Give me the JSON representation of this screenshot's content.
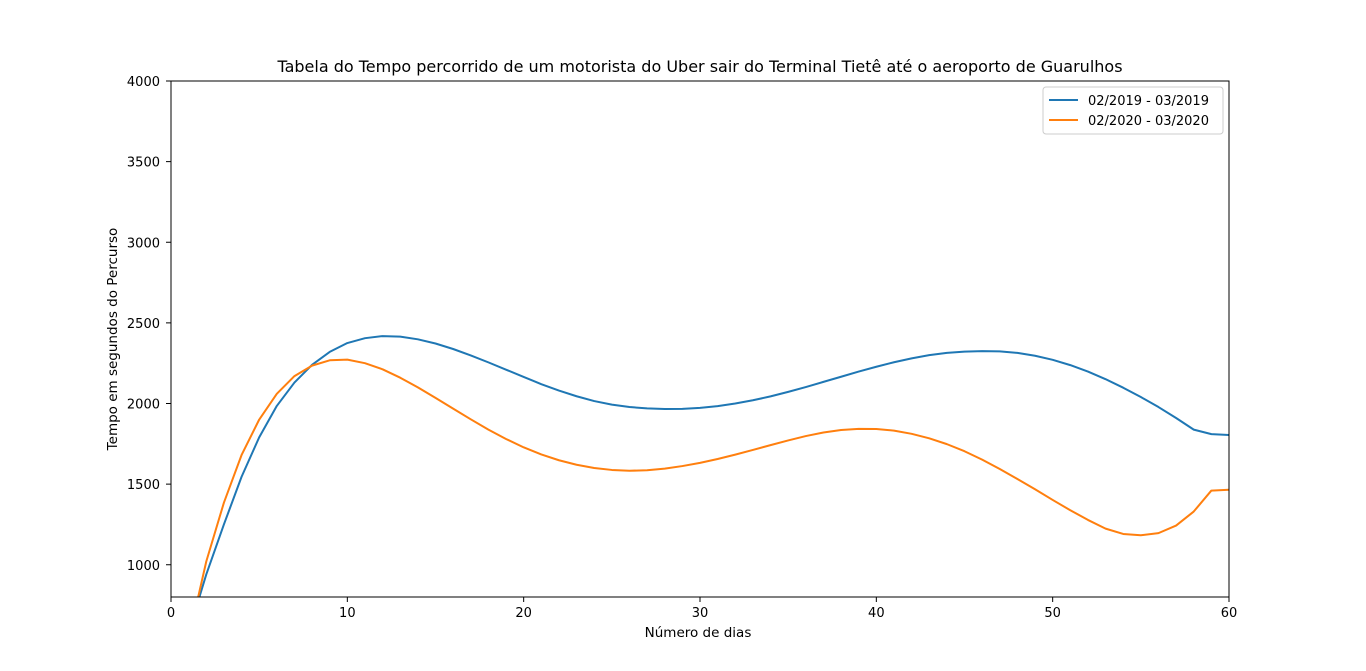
{
  "chart_data": {
    "type": "line",
    "title": "Tabela do Tempo percorrido de um motorista do Uber sair do Terminal Tietê até o aeroporto de Guarulhos",
    "xlabel": "Número de dias",
    "ylabel": "Tempo em segundos do Percurso",
    "xlim": [
      0,
      60
    ],
    "ylim": [
      800,
      4000
    ],
    "xticks": [
      0,
      10,
      20,
      30,
      40,
      50,
      60
    ],
    "xtick_labels": [
      "0",
      "10",
      "20",
      "30",
      "40",
      "50",
      "60"
    ],
    "yticks": [
      1000,
      1500,
      2000,
      2500,
      3000,
      3500,
      4000
    ],
    "ytick_labels": [
      "1000",
      "1500",
      "2000",
      "2500",
      "3000",
      "3500",
      "4000"
    ],
    "grid": false,
    "legend_position": "top-right",
    "x": [
      1,
      1.5,
      2,
      3,
      4,
      5,
      6,
      7,
      8,
      9,
      10,
      11,
      12,
      13,
      14,
      15,
      16,
      17,
      18,
      19,
      20,
      21,
      22,
      23,
      24,
      25,
      26,
      27,
      28,
      29,
      30,
      31,
      32,
      33,
      34,
      35,
      36,
      37,
      38,
      39,
      40,
      41,
      42,
      43,
      44,
      45,
      46,
      47,
      48,
      49,
      50,
      51,
      52,
      53,
      54,
      55,
      56,
      57,
      58,
      59,
      60
    ],
    "series": [
      {
        "name": "02/2019 - 03/2019",
        "color": "#1f77b4",
        "values": [
          550,
          760,
          940,
          1250,
          1545,
          1790,
          1985,
          2130,
          2240,
          2320,
          2375,
          2405,
          2418,
          2415,
          2398,
          2372,
          2338,
          2298,
          2255,
          2210,
          2165,
          2120,
          2080,
          2045,
          2015,
          1993,
          1978,
          1970,
          1966,
          1967,
          1973,
          1984,
          2000,
          2020,
          2044,
          2072,
          2102,
          2134,
          2166,
          2198,
          2228,
          2256,
          2280,
          2300,
          2314,
          2322,
          2325,
          2323,
          2314,
          2296,
          2271,
          2238,
          2198,
          2151,
          2098,
          2040,
          1978,
          1910,
          1838,
          1810,
          1805
        ]
      },
      {
        "name": "02/2020 - 03/2020",
        "color": "#ff7f0e",
        "values": [
          600,
          780,
          1020,
          1385,
          1680,
          1900,
          2060,
          2170,
          2235,
          2268,
          2272,
          2250,
          2212,
          2160,
          2100,
          2035,
          1968,
          1902,
          1838,
          1780,
          1728,
          1684,
          1648,
          1620,
          1600,
          1588,
          1583,
          1586,
          1596,
          1612,
          1632,
          1656,
          1683,
          1712,
          1742,
          1771,
          1798,
          1820,
          1836,
          1843,
          1842,
          1832,
          1812,
          1784,
          1748,
          1704,
          1652,
          1594,
          1532,
          1468,
          1402,
          1338,
          1278,
          1224,
          1191,
          1183,
          1196,
          1243,
          1330,
          1460,
          1465
        ]
      }
    ]
  }
}
